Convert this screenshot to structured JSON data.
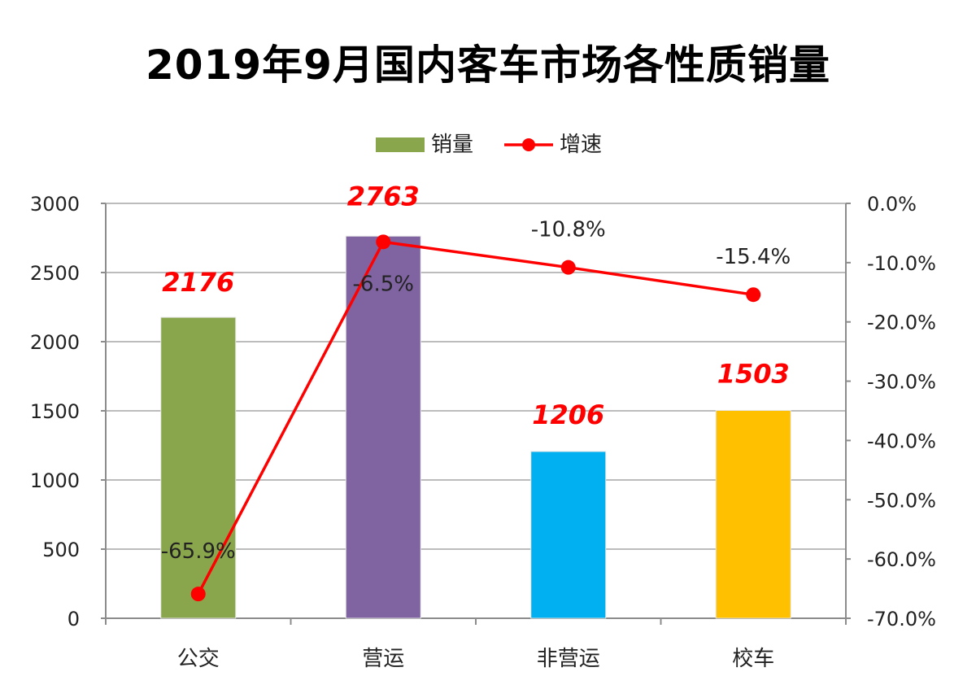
{
  "chart_data": {
    "type": "bar",
    "title": "2019年9月国内客车市场各性质销量",
    "categories": [
      "公交",
      "营运",
      "非营运",
      "校车"
    ],
    "series": [
      {
        "name": "销量",
        "type": "bar",
        "axis": "left",
        "values": [
          2176,
          2763,
          1206,
          1503
        ],
        "colors": [
          "#8aa64c",
          "#8064a2",
          "#00b0f0",
          "#ffc000"
        ],
        "labels": [
          "2176",
          "2763",
          "1206",
          "1503"
        ]
      },
      {
        "name": "增速",
        "type": "line",
        "axis": "right",
        "values": [
          -65.9,
          -6.5,
          -10.8,
          -15.4
        ],
        "color": "#ff0000",
        "labels": [
          "-65.9%",
          "-6.5%",
          "-10.8%",
          "-15.4%"
        ]
      }
    ],
    "y_left": {
      "range": [
        0,
        3000
      ],
      "ticks": [
        0,
        500,
        1000,
        1500,
        2000,
        2500,
        3000
      ],
      "tick_labels": [
        "0",
        "500",
        "1000",
        "1500",
        "2000",
        "2500",
        "3000"
      ]
    },
    "y_right": {
      "range": [
        -70,
        0
      ],
      "ticks": [
        0,
        -10,
        -20,
        -30,
        -40,
        -50,
        -60,
        -70
      ],
      "tick_labels": [
        "0.0%",
        "-10.0%",
        "-20.0%",
        "-30.0%",
        "-40.0%",
        "-50.0%",
        "-60.0%",
        "-70.0%"
      ]
    },
    "grid": true,
    "legend": {
      "position": "top-center",
      "items": [
        {
          "label": "销量",
          "marker": "bar",
          "color": "#8aa64c"
        },
        {
          "label": "增速",
          "marker": "line-dot",
          "color": "#ff0000"
        }
      ]
    },
    "label_color": "#ff0000",
    "grid_color": "#a6a6a6"
  }
}
